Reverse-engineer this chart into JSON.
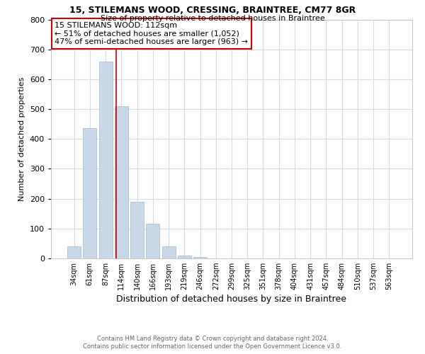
{
  "title1": "15, STILEMANS WOOD, CRESSING, BRAINTREE, CM77 8GR",
  "title2": "Size of property relative to detached houses in Braintree",
  "xlabel": "Distribution of detached houses by size in Braintree",
  "ylabel": "Number of detached properties",
  "bar_labels": [
    "34sqm",
    "61sqm",
    "87sqm",
    "114sqm",
    "140sqm",
    "166sqm",
    "193sqm",
    "219sqm",
    "246sqm",
    "272sqm",
    "299sqm",
    "325sqm",
    "351sqm",
    "378sqm",
    "404sqm",
    "431sqm",
    "457sqm",
    "484sqm",
    "510sqm",
    "537sqm",
    "563sqm"
  ],
  "bar_values": [
    40,
    437,
    660,
    510,
    190,
    115,
    40,
    10,
    5,
    1,
    1,
    1,
    0,
    0,
    0,
    0,
    0,
    0,
    0,
    0,
    0
  ],
  "bar_color": "#c8d8e8",
  "bar_edgecolor": "#a0b8cc",
  "property_line_x": 2.67,
  "property_line_color": "#cc0000",
  "annotation_title": "15 STILEMANS WOOD: 112sqm",
  "annotation_line1": "← 51% of detached houses are smaller (1,052)",
  "annotation_line2": "47% of semi-detached houses are larger (963) →",
  "annotation_box_color": "#cc0000",
  "ylim": [
    0,
    800
  ],
  "yticks": [
    0,
    100,
    200,
    300,
    400,
    500,
    600,
    700,
    800
  ],
  "footer1": "Contains HM Land Registry data © Crown copyright and database right 2024.",
  "footer2": "Contains public sector information licensed under the Open Government Licence v3.0.",
  "bg_color": "#ffffff",
  "grid_color": "#d0dce8"
}
